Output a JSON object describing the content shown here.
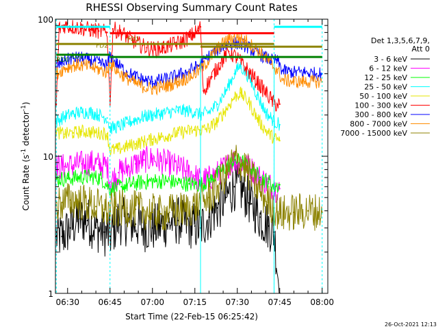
{
  "chart_data": {
    "type": "line",
    "title": "RHESSI Observing Summary Count Rates",
    "xlabel": "Start Time (22-Feb-15 06:25:42)",
    "ylabel": "Count Rate (s",
    "ylabel_sup1": "-1",
    "ylabel_mid": " detector",
    "ylabel_sup2": "-1",
    "ylabel_end": ")",
    "y_scale": "log",
    "xlim": [
      "06:25:42",
      "08:02:00"
    ],
    "ylim": [
      1,
      100
    ],
    "x_ticks": [
      "06:30",
      "06:45",
      "07:00",
      "07:15",
      "07:30",
      "07:45",
      "08:00"
    ],
    "y_ticks": [
      {
        "value": 1,
        "label": "1"
      },
      {
        "value": 10,
        "label": "10"
      },
      {
        "value": 100,
        "label": "100"
      }
    ],
    "legend": {
      "placement": "right",
      "header": [
        "Det 1,3,5,6,7,9,",
        "Att 0"
      ],
      "entries": [
        {
          "label": "3 - 6 keV",
          "color": "#000000"
        },
        {
          "label": "6 - 12 keV",
          "color": "#ff00ff"
        },
        {
          "label": "12 - 25 keV",
          "color": "#00ff00"
        },
        {
          "label": "25 - 50 keV",
          "color": "#00ffff"
        },
        {
          "label": "50 - 100 keV",
          "color": "#e6e600"
        },
        {
          "label": "100 - 300 keV",
          "color": "#ff0000"
        },
        {
          "label": "300 - 800 keV",
          "color": "#0000ff"
        },
        {
          "label": "800 - 7000 keV",
          "color": "#ff8c00"
        },
        {
          "label": "7000 - 15000 keV",
          "color": "#8c8200"
        }
      ]
    },
    "annotations": {
      "flags": [
        {
          "label": "FD2",
          "color": "#8c8200"
        },
        {
          "label": "FD1",
          "color": "#8c8200"
        },
        {
          "label": "RD0",
          "color": "#008000"
        },
        {
          "label": "RD0",
          "color": "#008000"
        }
      ]
    },
    "series": [
      {
        "band": "3 - 6 keV",
        "color": "#000000",
        "x": [
          "06:26",
          "06:28",
          "06:31",
          "06:34",
          "06:37",
          "06:40",
          "06:43",
          "06:45",
          "06:48",
          "06:51",
          "06:54",
          "06:57",
          "07:00",
          "07:03",
          "07:06",
          "07:09",
          "07:12",
          "07:15",
          "07:17",
          "07:20",
          "07:23",
          "07:26",
          "07:29",
          "07:32",
          "07:35",
          "07:38",
          "07:41",
          "07:43",
          "07:45"
        ],
        "y": [
          2.6,
          2.6,
          3.0,
          3.5,
          3.4,
          3.0,
          2.8,
          2.6,
          3.4,
          3.3,
          3.2,
          3.0,
          3.0,
          3.1,
          3.3,
          3.4,
          3.2,
          3.1,
          3.0,
          3.6,
          4.2,
          5.0,
          6.0,
          5.6,
          4.5,
          3.6,
          3.1,
          2.8,
          1.0
        ]
      },
      {
        "band": "6 - 12 keV",
        "color": "#ff00ff",
        "x": [
          "06:26",
          "06:29",
          "06:32",
          "06:35",
          "06:38",
          "06:41",
          "06:44",
          "06:45",
          "06:48",
          "06:51",
          "06:54",
          "06:57",
          "07:00",
          "07:03",
          "07:06",
          "07:09",
          "07:12",
          "07:15",
          "07:17",
          "07:20",
          "07:23",
          "07:26",
          "07:29",
          "07:32",
          "07:35",
          "07:38",
          "07:41",
          "07:43",
          "07:45"
        ],
        "y": [
          8.3,
          8.4,
          8.6,
          8.8,
          9.0,
          8.7,
          8.5,
          6.5,
          7.6,
          8.2,
          8.8,
          9.4,
          9.6,
          9.2,
          8.8,
          8.3,
          7.8,
          7.2,
          6.6,
          6.9,
          7.5,
          8.4,
          9.4,
          9.0,
          8.0,
          7.0,
          6.3,
          5.8,
          5.8
        ]
      },
      {
        "band": "12 - 25 keV",
        "color": "#00ff00",
        "x": [
          "06:26",
          "06:30",
          "06:34",
          "06:38",
          "06:42",
          "06:45",
          "06:49",
          "06:53",
          "06:57",
          "07:01",
          "07:05",
          "07:09",
          "07:13",
          "07:17",
          "07:21",
          "07:25",
          "07:29",
          "07:32",
          "07:35",
          "07:38",
          "07:41",
          "07:43",
          "07:45"
        ],
        "y": [
          6.8,
          6.9,
          7.0,
          7.1,
          6.9,
          5.8,
          6.0,
          6.3,
          6.5,
          6.6,
          6.6,
          6.4,
          6.3,
          6.2,
          6.8,
          8.0,
          9.4,
          9.0,
          8.0,
          7.0,
          6.5,
          6.0,
          6.2
        ]
      },
      {
        "band": "25 - 50 keV",
        "color": "#00ffff",
        "x": [
          "06:26",
          "06:29",
          "06:32",
          "06:35",
          "06:38",
          "06:41",
          "06:44",
          "06:45",
          "06:48",
          "06:51",
          "06:54",
          "06:57",
          "07:00",
          "07:03",
          "07:06",
          "07:09",
          "07:12",
          "07:15",
          "07:17",
          "07:20",
          "07:23",
          "07:26",
          "07:29",
          "07:31",
          "07:34",
          "07:37",
          "07:40",
          "07:43",
          "07:45"
        ],
        "y": [
          18,
          19.5,
          20.5,
          21,
          21,
          20,
          19,
          16,
          16.5,
          17.5,
          18.5,
          19.5,
          20,
          20.5,
          21,
          21.5,
          21.5,
          21,
          20,
          21,
          24,
          30,
          40,
          46,
          38,
          28,
          21,
          18,
          17
        ]
      },
      {
        "band": "50 - 100 keV",
        "color": "#e6e600",
        "x": [
          "06:26",
          "06:29",
          "06:32",
          "06:35",
          "06:38",
          "06:41",
          "06:44",
          "06:45",
          "06:48",
          "06:51",
          "06:54",
          "06:57",
          "07:00",
          "07:03",
          "07:06",
          "07:09",
          "07:12",
          "07:15",
          "07:17",
          "07:20",
          "07:23",
          "07:26",
          "07:29",
          "07:31",
          "07:34",
          "07:37",
          "07:40",
          "07:43",
          "07:45"
        ],
        "y": [
          15,
          14.5,
          14.8,
          15.2,
          15.0,
          14.8,
          14.6,
          11.0,
          11.3,
          11.8,
          12.3,
          12.8,
          13.3,
          13.8,
          14.3,
          14.8,
          15.2,
          15.5,
          15.5,
          16,
          18,
          22,
          27,
          29,
          25,
          19,
          15.5,
          13.5,
          13
        ]
      },
      {
        "band": "100 - 300 keV",
        "color": "#ff0000",
        "x": [
          "06:26",
          "06:27",
          "06:29",
          "06:32",
          "06:35",
          "06:38",
          "06:41",
          "06:44",
          "06:45",
          "06:46",
          "06:49",
          "06:52",
          "06:55",
          "06:58",
          "07:01",
          "07:04",
          "07:07",
          "07:10",
          "07:13",
          "07:16",
          "07:17",
          "07:18",
          "07:21",
          "07:24",
          "07:27",
          "07:30",
          "07:33",
          "07:36",
          "07:39",
          "07:42",
          "07:43",
          "07:45"
        ],
        "y": [
          24,
          85,
          90,
          88,
          86,
          84,
          82,
          80,
          25,
          85,
          80,
          72,
          66,
          62,
          60,
          62,
          65,
          68,
          74,
          82,
          88,
          30,
          38,
          48,
          58,
          52,
          44,
          37,
          31,
          26,
          24,
          24
        ]
      },
      {
        "band": "300 - 800 keV",
        "color": "#0000ff",
        "x": [
          "06:26",
          "06:29",
          "06:32",
          "06:35",
          "06:38",
          "06:41",
          "06:44",
          "06:45",
          "06:48",
          "06:51",
          "06:54",
          "06:57",
          "07:00",
          "07:03",
          "07:06",
          "07:09",
          "07:12",
          "07:15",
          "07:18",
          "07:21",
          "07:24",
          "07:27",
          "07:30",
          "07:33",
          "07:36",
          "07:39",
          "07:42",
          "07:44",
          "07:46",
          "07:50",
          "07:54",
          "07:58",
          "08:00"
        ],
        "y": [
          45,
          50,
          52,
          52,
          50,
          48,
          46,
          54,
          46,
          41,
          38,
          36,
          35,
          36,
          37,
          39,
          41,
          44,
          49,
          56,
          62,
          66,
          67,
          64,
          58,
          54,
          50,
          50,
          42,
          41,
          41,
          40,
          40
        ]
      },
      {
        "band": "800 - 7000 keV",
        "color": "#ff8c00",
        "x": [
          "06:26",
          "06:29",
          "06:32",
          "06:35",
          "06:38",
          "06:41",
          "06:44",
          "06:45",
          "06:48",
          "06:51",
          "06:54",
          "06:57",
          "07:00",
          "07:03",
          "07:06",
          "07:09",
          "07:12",
          "07:15",
          "07:18",
          "07:21",
          "07:24",
          "07:27",
          "07:30",
          "07:33",
          "07:36",
          "07:39",
          "07:42",
          "07:44",
          "07:46",
          "07:50",
          "07:54",
          "07:58",
          "08:00"
        ],
        "y": [
          40,
          44,
          46,
          46,
          45,
          43,
          41,
          48,
          41,
          37,
          34,
          32,
          31,
          32,
          33,
          35,
          37,
          40,
          45,
          54,
          64,
          72,
          74,
          70,
          62,
          55,
          47,
          43,
          36,
          35,
          35,
          35,
          35
        ]
      },
      {
        "band": "7000 - 15000 keV",
        "color": "#8c8200",
        "x": [
          "06:26",
          "06:28",
          "06:31",
          "06:34",
          "06:37",
          "06:40",
          "06:43",
          "06:45",
          "06:48",
          "06:51",
          "06:54",
          "06:57",
          "07:00",
          "07:03",
          "07:06",
          "07:09",
          "07:12",
          "07:15",
          "07:17",
          "07:20",
          "07:23",
          "07:26",
          "07:29",
          "07:32",
          "07:35",
          "07:38",
          "07:41",
          "07:43",
          "07:45",
          "07:50",
          "07:55",
          "08:00"
        ],
        "y": [
          4.4,
          4.6,
          4.8,
          4.7,
          4.5,
          4.3,
          4.1,
          4.0,
          4.1,
          4.2,
          4.1,
          4.0,
          3.9,
          3.8,
          3.9,
          4.0,
          4.1,
          4.3,
          4.5,
          5.0,
          6.0,
          7.5,
          9.5,
          8.8,
          7.0,
          5.5,
          4.6,
          4.2,
          3.8,
          3.9,
          4.0,
          3.9
        ]
      }
    ]
  },
  "footer": {
    "date_stamp": "26-Oct-2021 12:13"
  }
}
